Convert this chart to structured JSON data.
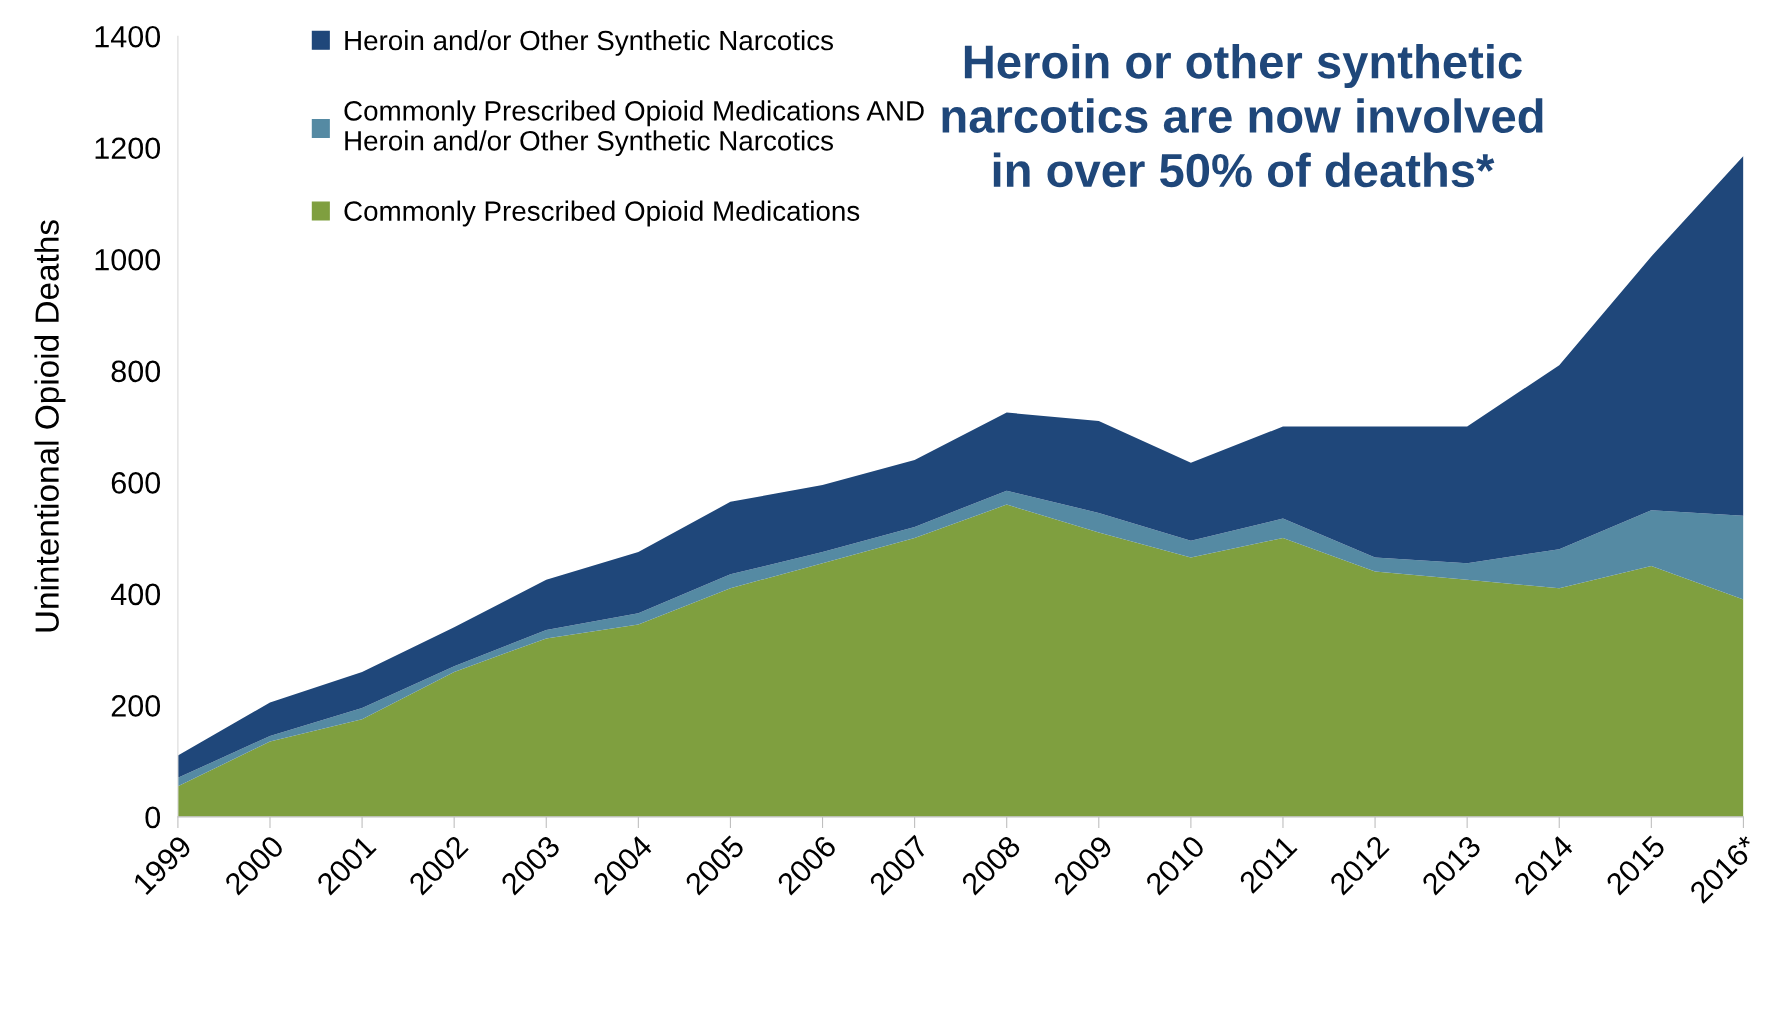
{
  "chart_data": {
    "type": "area",
    "stacked": true,
    "ylabel": "Unintentional Opioid Deaths",
    "categories": [
      "1999",
      "2000",
      "2001",
      "2002",
      "2003",
      "2004",
      "2005",
      "2006",
      "2007",
      "2008",
      "2009",
      "2010",
      "2011",
      "2012",
      "2013",
      "2014",
      "2015",
      "2016*"
    ],
    "series": [
      {
        "name": "Commonly Prescribed Opioid Medications",
        "color": "#7f9f3f",
        "values": [
          55,
          135,
          175,
          260,
          320,
          345,
          410,
          455,
          500,
          560,
          510,
          465,
          500,
          440,
          425,
          410,
          450,
          390
        ]
      },
      {
        "name": "Commonly Prescribed Opioid Medications AND Heroin and/or Other Synthetic Narcotics",
        "color": "#558aa3",
        "values": [
          15,
          10,
          20,
          10,
          15,
          20,
          25,
          20,
          20,
          25,
          35,
          30,
          35,
          25,
          30,
          70,
          100,
          150
        ]
      },
      {
        "name": "Heroin and/or Other Synthetic Narcotics",
        "color": "#1f477a",
        "values": [
          40,
          60,
          65,
          70,
          90,
          110,
          130,
          120,
          120,
          140,
          165,
          140,
          165,
          235,
          245,
          330,
          455,
          645
        ]
      }
    ],
    "ylim": [
      0,
      1400
    ],
    "yticks": [
      0,
      200,
      400,
      600,
      800,
      1000,
      1200,
      1400
    ],
    "grid": false,
    "legend": "top left",
    "annotations": [
      "Heroin or other synthetic narcotics are now involved in over 50% of deaths*"
    ]
  }
}
